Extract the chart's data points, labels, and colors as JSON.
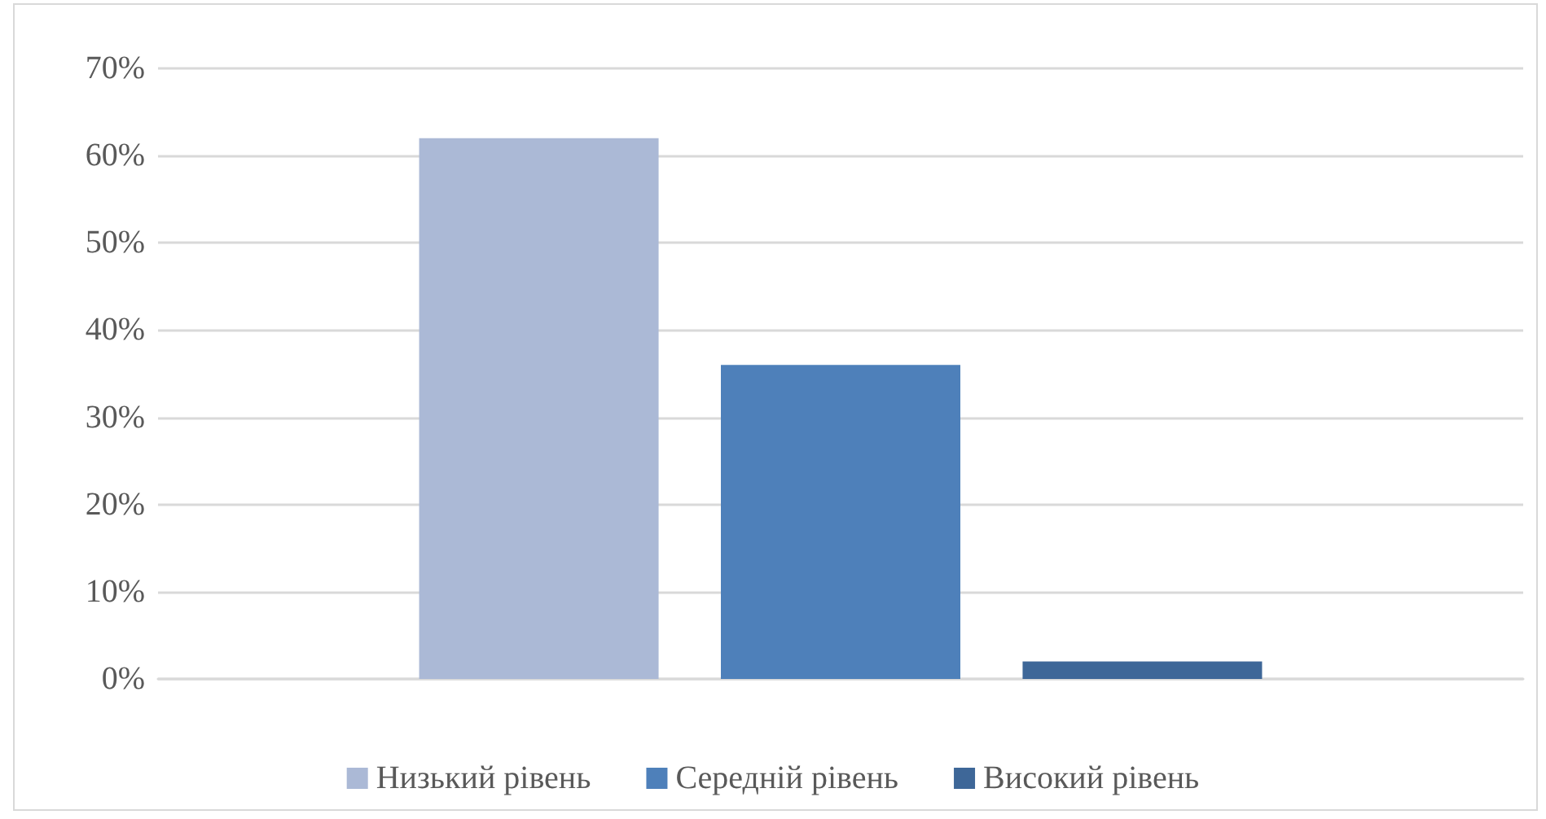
{
  "chart_data": {
    "type": "bar",
    "categories": [
      null
    ],
    "series": [
      {
        "name": "Низький рівень",
        "color": "#abb9d6",
        "values": [
          62
        ]
      },
      {
        "name": "Середній рівень",
        "color": "#4e80ba",
        "values": [
          36
        ]
      },
      {
        "name": "Високий рівень",
        "color": "#3e6798",
        "values": [
          2
        ]
      }
    ],
    "ylim": [
      0,
      70
    ],
    "yticks": [
      {
        "value": 0,
        "label": "0%"
      },
      {
        "value": 10,
        "label": "10%"
      },
      {
        "value": 20,
        "label": "20%"
      },
      {
        "value": 30,
        "label": "30%"
      },
      {
        "value": 40,
        "label": "40%"
      },
      {
        "value": 50,
        "label": "50%"
      },
      {
        "value": 60,
        "label": "60%"
      },
      {
        "value": 70,
        "label": "70%"
      }
    ],
    "grid": "y",
    "legend": "bottom"
  }
}
